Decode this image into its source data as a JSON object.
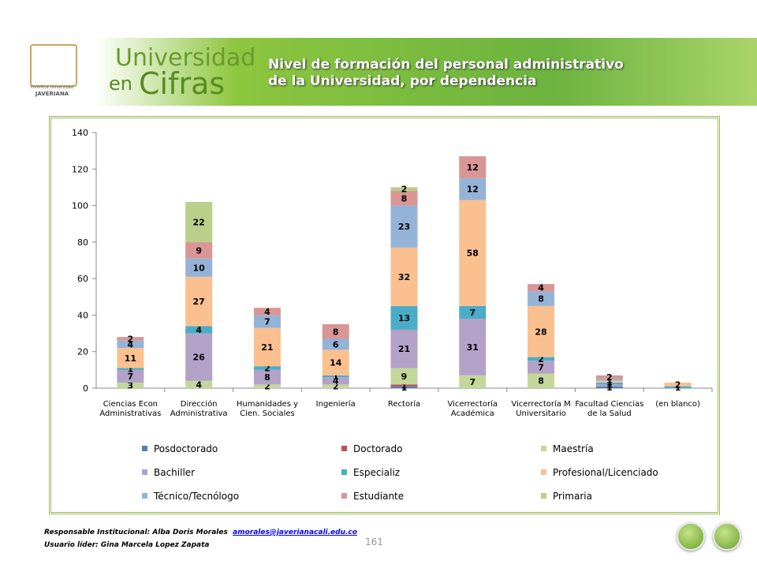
{
  "header": {
    "brand_line1": "Universidad",
    "brand_line2a": "en",
    "brand_line2b": "Cifras",
    "logo_text1": "Pontificia Universidad",
    "logo_text2": "JAVERIANA",
    "slide_title1": "Nivel de formación del personal administrativo",
    "slide_title2": "de la Universidad, por dependencia"
  },
  "chart_data": {
    "type": "stacked_bar",
    "categories": [
      "Ciencias Econ Administrativas",
      "Dirección Administrativa",
      "Humanidades y Cien. Sociales",
      "Ingeniería",
      "Rectoría",
      "Vicerrectoría Académica",
      "Vicerrectoría M Universitario",
      "Facultad Ciencias de la Salud",
      "(en blanco)"
    ],
    "series": [
      {
        "name": "Posdoctorado",
        "color": "#4f81bd",
        "values": [
          null,
          null,
          null,
          null,
          1,
          null,
          null,
          1,
          null
        ]
      },
      {
        "name": "Doctorado",
        "color": "#c0504d",
        "values": [
          null,
          null,
          null,
          null,
          1,
          null,
          null,
          null,
          null
        ]
      },
      {
        "name": "Maestría",
        "color": "#c4d79b",
        "values": [
          3,
          4,
          2,
          2,
          9,
          7,
          8,
          null,
          null
        ]
      },
      {
        "name": "Bachiller",
        "color": "#b3a2c7",
        "values": [
          7,
          26,
          8,
          4,
          21,
          31,
          7,
          1,
          null
        ]
      },
      {
        "name": "Especializ",
        "color": "#4bacc6",
        "values": [
          1,
          4,
          2,
          1,
          13,
          7,
          2,
          1,
          1
        ]
      },
      {
        "name": "Profesional/Licenciado",
        "color": "#fac090",
        "values": [
          11,
          27,
          21,
          14,
          32,
          58,
          28,
          1,
          2
        ]
      },
      {
        "name": "Técnico/Tecnólogo",
        "color": "#95b3d7",
        "values": [
          4,
          10,
          7,
          6,
          23,
          12,
          8,
          1,
          null
        ]
      },
      {
        "name": "Estudiante",
        "color": "#d99694",
        "values": [
          2,
          9,
          4,
          8,
          8,
          12,
          4,
          2,
          null
        ]
      },
      {
        "name": "Primaria",
        "color": "#b9cf8a",
        "values": [
          null,
          22,
          null,
          null,
          2,
          null,
          null,
          null,
          null
        ]
      }
    ],
    "ylim": [
      0,
      140
    ],
    "yticks": [
      0,
      20,
      40,
      60,
      80,
      100,
      120,
      140
    ],
    "grid": false,
    "legend": "bottom"
  },
  "footer": {
    "responsible_label": "Responsable Institucional: Alba Doris Morales",
    "email": "amorales@javerianacali.edu.co",
    "user_label": "Usuario líder: Gina Marcela Lopez Zapata",
    "page_number": "161"
  }
}
